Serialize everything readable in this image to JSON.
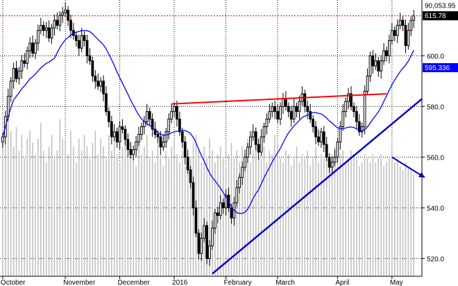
{
  "chart_data": {
    "type": "candlestick",
    "title": "",
    "xlabel": "",
    "ylabel": "",
    "ylim": [
      513,
      622
    ],
    "y_ticks": [
      "520.0",
      "540.0",
      "560.0",
      "580.0",
      "600.0"
    ],
    "x_labels": [
      {
        "label": "October",
        "session": 0
      },
      {
        "label": "November",
        "session": 23
      },
      {
        "label": "December",
        "session": 43
      },
      {
        "label": "2016",
        "session": 63
      },
      {
        "label": "February",
        "session": 82
      },
      {
        "label": "March",
        "session": 101
      },
      {
        "label": "April",
        "session": 123
      },
      {
        "label": "May",
        "session": 143
      }
    ],
    "session_count": 154,
    "price_tags": [
      {
        "label": "90,053.95",
        "value": 622.0,
        "style": "plain"
      },
      {
        "label": "615.78",
        "value": 615.78,
        "style": "dark"
      },
      {
        "label": "595.336",
        "value": 595.3,
        "style": "blue"
      }
    ],
    "colors": {
      "candles": "#000000",
      "volume": "#c0c0c0",
      "moving_average": "#0000ff",
      "resistance_line": "#ff0000",
      "support_line": "#0000cc",
      "reference_line": "#cc0000",
      "tag_dark": "#000000",
      "tag_blue": "#0000ff"
    },
    "series": [
      {
        "kind": "close",
        "values": [
          568,
          576,
          584,
          590,
          595,
          591,
          594,
          598,
          597,
          602,
          605,
          601,
          605,
          610,
          612,
          610,
          611,
          607,
          611,
          614,
          612,
          616,
          617,
          618,
          614,
          610,
          608,
          606,
          603,
          608,
          606,
          600,
          598,
          592,
          590,
          588,
          590,
          585,
          578,
          574,
          568,
          570,
          566,
          572,
          571,
          567,
          563,
          561,
          563,
          566,
          569,
          572,
          574,
          578,
          575,
          571,
          569,
          568,
          564,
          566,
          570,
          575,
          578,
          580,
          575,
          570,
          566,
          560,
          555,
          550,
          540,
          530,
          522,
          528,
          533,
          520,
          525,
          532,
          538,
          537,
          542,
          540,
          545,
          540,
          536,
          542,
          548,
          552,
          556,
          560,
          564,
          568,
          570,
          565,
          562,
          568,
          572,
          575,
          578,
          580,
          578,
          575,
          580,
          583,
          580,
          578,
          575,
          580,
          578,
          582,
          585,
          580,
          578,
          575,
          572,
          568,
          566,
          570,
          565,
          560,
          556,
          558,
          560,
          566,
          572,
          578,
          582,
          585,
          580,
          578,
          574,
          570,
          572,
          586,
          592,
          600,
          596,
          598,
          594,
          598,
          602,
          600,
          606,
          610,
          608,
          612,
          614,
          612,
          604,
          610,
          614,
          615.78
        ],
        "name": ""
      },
      {
        "kind": "volume",
        "values": [
          70,
          68,
          82,
          74,
          66,
          76,
          64,
          72,
          60,
          70,
          74,
          68,
          62,
          70,
          78,
          64,
          58,
          66,
          72,
          60,
          64,
          80,
          70,
          68,
          62,
          74,
          66,
          58,
          70,
          64,
          72,
          66,
          60,
          68,
          74,
          62,
          70,
          66,
          60,
          72,
          64,
          70,
          62,
          58,
          66,
          74,
          60,
          68,
          64,
          56,
          70,
          62,
          66,
          72,
          60,
          64,
          58,
          68,
          62,
          56,
          64,
          60,
          66,
          70,
          62,
          58,
          64,
          56,
          62,
          60,
          68,
          72,
          64,
          58,
          66,
          60,
          70,
          64,
          58,
          62,
          66,
          60,
          56,
          62,
          68,
          60,
          64,
          58,
          66,
          62,
          70,
          58,
          64,
          76,
          62,
          60,
          66,
          58,
          64,
          62,
          72,
          66,
          60,
          58,
          64,
          62,
          56,
          60,
          66,
          58,
          62,
          60,
          64,
          56,
          60,
          66,
          58,
          62,
          60,
          64,
          56,
          62,
          66,
          60,
          62,
          64,
          58,
          60,
          64,
          62,
          60,
          56,
          58,
          62,
          60,
          58,
          62,
          58,
          60,
          62,
          56,
          58,
          60,
          62,
          58,
          60,
          56,
          54,
          58,
          56,
          54,
          52
        ],
        "name": ""
      }
    ],
    "moving_average": {
      "name": "",
      "window": 20
    },
    "annotations": [
      {
        "kind": "resistance-line",
        "from": {
          "session": 62,
          "value": 581
        },
        "to": {
          "session": 141,
          "value": 585
        }
      },
      {
        "kind": "support-line",
        "from": {
          "session": 77,
          "value": 514
        },
        "to": {
          "session": 154,
          "value": 583
        }
      },
      {
        "kind": "arrow",
        "from": {
          "session": 143,
          "value": 560
        },
        "to": {
          "session": 155,
          "value": 552
        }
      },
      {
        "kind": "reference-line",
        "value": 615.78
      }
    ]
  }
}
